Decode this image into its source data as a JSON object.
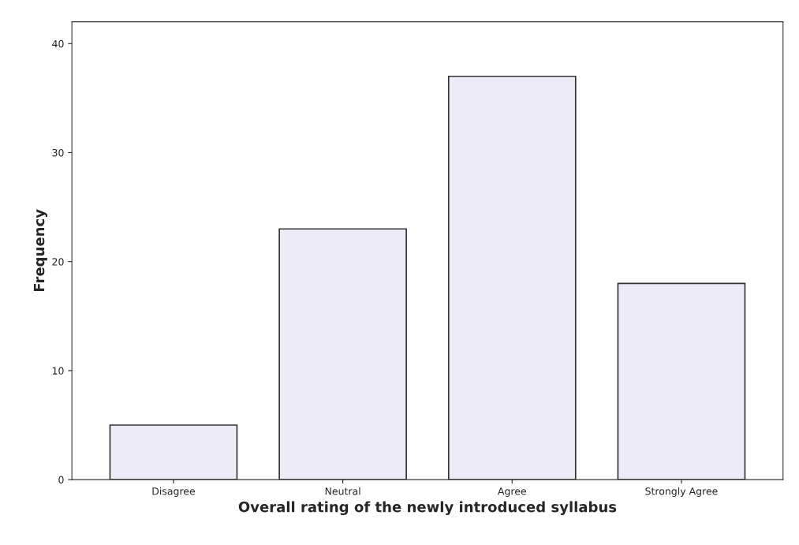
{
  "chart_data": {
    "type": "bar",
    "xlabel": "Overall rating of the newly introduced syllabus",
    "ylabel": "Frequency",
    "categories": [
      "Disagree",
      "Neutral",
      "Agree",
      "Strongly Agree"
    ],
    "values": [
      5,
      23,
      37,
      18
    ],
    "color": "#ecebf7",
    "ylim": [
      0,
      42
    ],
    "yticks": [
      0,
      10,
      20,
      30,
      40
    ],
    "grid": false
  }
}
